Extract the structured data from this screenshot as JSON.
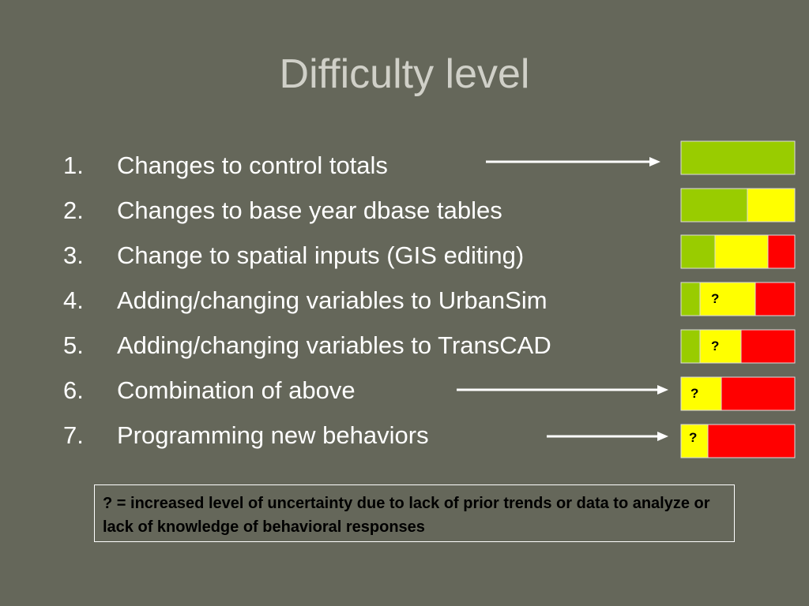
{
  "title": "Difficulty level",
  "items": [
    {
      "number": "1.",
      "text": "Changes to control totals"
    },
    {
      "number": "2.",
      "text": "Changes to base year dbase tables"
    },
    {
      "number": "3.",
      "text": "Change to spatial inputs (GIS editing)"
    },
    {
      "number": "4.",
      "text": "Adding/changing variables to UrbanSim",
      "mark": "?"
    },
    {
      "number": "5.",
      "text": "Adding/changing variables to TransCAD",
      "mark": "?"
    },
    {
      "number": "6.",
      "text": "Combination of above",
      "mark": "?"
    },
    {
      "number": "7.",
      "text": "Programming new behaviors",
      "mark": "?"
    }
  ],
  "note": "? =  increased level of uncertainty due to lack of prior trends or data to analyze or lack of knowledge of behavioral responses"
}
